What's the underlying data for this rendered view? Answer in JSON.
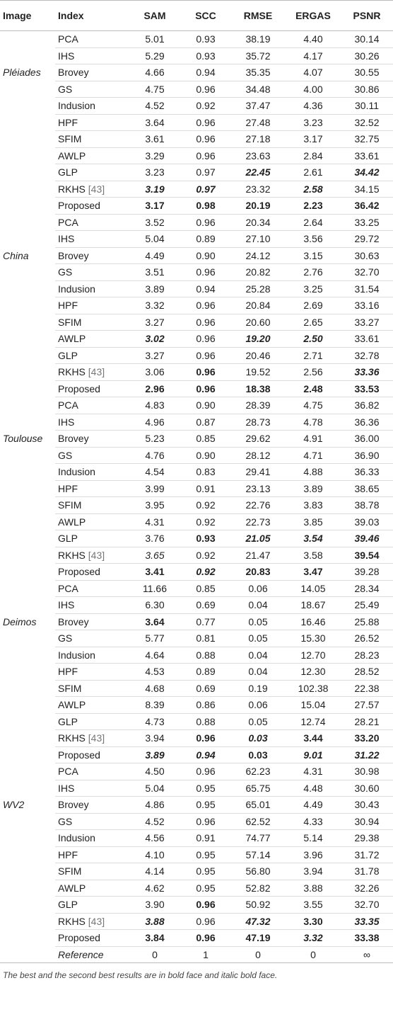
{
  "header": [
    "Image",
    "Index",
    "SAM",
    "SCC",
    "RMSE",
    "ERGAS",
    "PSNR"
  ],
  "groups": [
    {
      "image": "Pléiades",
      "rows": [
        {
          "index": "PCA",
          "values": [
            "5.01",
            "0.93",
            "38.19",
            "4.40",
            "30.14"
          ]
        },
        {
          "index": "IHS",
          "values": [
            "5.29",
            "0.93",
            "35.72",
            "4.17",
            "30.26"
          ]
        },
        {
          "index": "Brovey",
          "values": [
            "4.66",
            "0.94",
            "35.35",
            "4.07",
            "30.55"
          ]
        },
        {
          "index": "GS",
          "values": [
            "4.75",
            "0.96",
            "34.48",
            "4.00",
            "30.86"
          ]
        },
        {
          "index": "Indusion",
          "values": [
            "4.52",
            "0.92",
            "37.47",
            "4.36",
            "30.11"
          ]
        },
        {
          "index": "HPF",
          "values": [
            "3.64",
            "0.96",
            "27.48",
            "3.23",
            "32.52"
          ]
        },
        {
          "index": "SFIM",
          "values": [
            "3.61",
            "0.96",
            "27.18",
            "3.17",
            "32.75"
          ]
        },
        {
          "index": "AWLP",
          "values": [
            "3.29",
            "0.96",
            "23.63",
            "2.84",
            "33.61"
          ]
        },
        {
          "index": "GLP",
          "values": [
            "3.23",
            "0.97",
            "22.45",
            "2.61",
            "34.42"
          ]
        },
        {
          "index": "RKHS",
          "cite": "[43]",
          "values": [
            "3.19",
            "0.97",
            "23.32",
            "2.58",
            "34.15"
          ]
        },
        {
          "index": "Proposed",
          "values": [
            "3.17",
            "0.98",
            "20.19",
            "2.23",
            "36.42"
          ]
        }
      ]
    },
    {
      "image": "China",
      "rows": [
        {
          "index": "PCA",
          "values": [
            "3.52",
            "0.96",
            "20.34",
            "2.64",
            "33.25"
          ]
        },
        {
          "index": "IHS",
          "values": [
            "5.04",
            "0.89",
            "27.10",
            "3.56",
            "29.72"
          ]
        },
        {
          "index": "Brovey",
          "values": [
            "4.49",
            "0.90",
            "24.12",
            "3.15",
            "30.63"
          ]
        },
        {
          "index": "GS",
          "values": [
            "3.51",
            "0.96",
            "20.82",
            "2.76",
            "32.70"
          ]
        },
        {
          "index": "Indusion",
          "values": [
            "3.89",
            "0.94",
            "25.28",
            "3.25",
            "31.54"
          ]
        },
        {
          "index": "HPF",
          "values": [
            "3.32",
            "0.96",
            "20.84",
            "2.69",
            "33.16"
          ]
        },
        {
          "index": "SFIM",
          "values": [
            "3.27",
            "0.96",
            "20.60",
            "2.65",
            "33.27"
          ]
        },
        {
          "index": "AWLP",
          "values": [
            "3.02",
            "0.96",
            "19.20",
            "2.50",
            "33.61"
          ]
        },
        {
          "index": "GLP",
          "values": [
            "3.27",
            "0.96",
            "20.46",
            "2.71",
            "32.78"
          ]
        },
        {
          "index": "RKHS",
          "cite": "[43]",
          "values": [
            "3.06",
            "0.96",
            "19.52",
            "2.56",
            "33.36"
          ]
        },
        {
          "index": "Proposed",
          "values": [
            "2.96",
            "0.96",
            "18.38",
            "2.48",
            "33.53"
          ]
        }
      ]
    },
    {
      "image": "Toulouse",
      "rows": [
        {
          "index": "PCA",
          "values": [
            "4.83",
            "0.90",
            "28.39",
            "4.75",
            "36.82"
          ]
        },
        {
          "index": "IHS",
          "values": [
            "4.96",
            "0.87",
            "28.73",
            "4.78",
            "36.36"
          ]
        },
        {
          "index": "Brovey",
          "values": [
            "5.23",
            "0.85",
            "29.62",
            "4.91",
            "36.00"
          ]
        },
        {
          "index": "GS",
          "values": [
            "4.76",
            "0.90",
            "28.12",
            "4.71",
            "36.90"
          ]
        },
        {
          "index": "Indusion",
          "values": [
            "4.54",
            "0.83",
            "29.41",
            "4.88",
            "36.33"
          ]
        },
        {
          "index": "HPF",
          "values": [
            "3.99",
            "0.91",
            "23.13",
            "3.89",
            "38.65"
          ]
        },
        {
          "index": "SFIM",
          "values": [
            "3.95",
            "0.92",
            "22.76",
            "3.83",
            "38.78"
          ]
        },
        {
          "index": "AWLP",
          "values": [
            "4.31",
            "0.92",
            "22.73",
            "3.85",
            "39.03"
          ]
        },
        {
          "index": "GLP",
          "values": [
            "3.76",
            "0.93",
            "21.05",
            "3.54",
            "39.46"
          ]
        },
        {
          "index": "RKHS",
          "cite": "[43]",
          "values": [
            "3.65",
            "0.92",
            "21.47",
            "3.58",
            "39.54"
          ]
        },
        {
          "index": "Proposed",
          "values": [
            "3.41",
            "0.92",
            "20.83",
            "3.47",
            "39.28"
          ]
        }
      ]
    },
    {
      "image": "Deimos",
      "rows": [
        {
          "index": "PCA",
          "values": [
            "11.66",
            "0.85",
            "0.06",
            "14.05",
            "28.34"
          ]
        },
        {
          "index": "IHS",
          "values": [
            "6.30",
            "0.69",
            "0.04",
            "18.67",
            "25.49"
          ]
        },
        {
          "index": "Brovey",
          "values": [
            "3.64",
            "0.77",
            "0.05",
            "16.46",
            "25.88"
          ]
        },
        {
          "index": "GS",
          "values": [
            "5.77",
            "0.81",
            "0.05",
            "15.30",
            "26.52"
          ]
        },
        {
          "index": "Indusion",
          "values": [
            "4.64",
            "0.88",
            "0.04",
            "12.70",
            "28.23"
          ]
        },
        {
          "index": "HPF",
          "values": [
            "4.53",
            "0.89",
            "0.04",
            "12.30",
            "28.52"
          ]
        },
        {
          "index": "SFIM",
          "values": [
            "4.68",
            "0.69",
            "0.19",
            "102.38",
            "22.38"
          ]
        },
        {
          "index": "AWLP",
          "values": [
            "8.39",
            "0.86",
            "0.06",
            "15.04",
            "27.57"
          ]
        },
        {
          "index": "GLP",
          "values": [
            "4.73",
            "0.88",
            "0.05",
            "12.74",
            "28.21"
          ]
        },
        {
          "index": "RKHS",
          "cite": "[43]",
          "values": [
            "3.94",
            "0.96",
            "0.03",
            "3.44",
            "33.20"
          ]
        },
        {
          "index": "Proposed",
          "values": [
            "3.89",
            "0.94",
            "0.03",
            "9.01",
            "31.22"
          ]
        }
      ]
    },
    {
      "image": "WV2",
      "rows": [
        {
          "index": "PCA",
          "values": [
            "4.50",
            "0.96",
            "62.23",
            "4.31",
            "30.98"
          ]
        },
        {
          "index": "IHS",
          "values": [
            "5.04",
            "0.95",
            "65.75",
            "4.48",
            "30.60"
          ]
        },
        {
          "index": "Brovey",
          "values": [
            "4.86",
            "0.95",
            "65.01",
            "4.49",
            "30.43"
          ]
        },
        {
          "index": "GS",
          "values": [
            "4.52",
            "0.96",
            "62.52",
            "4.33",
            "30.94"
          ]
        },
        {
          "index": "Indusion",
          "values": [
            "4.56",
            "0.91",
            "74.77",
            "5.14",
            "29.38"
          ]
        },
        {
          "index": "HPF",
          "values": [
            "4.10",
            "0.95",
            "57.14",
            "3.96",
            "31.72"
          ]
        },
        {
          "index": "SFIM",
          "values": [
            "4.14",
            "0.95",
            "56.80",
            "3.94",
            "31.78"
          ]
        },
        {
          "index": "AWLP",
          "values": [
            "4.62",
            "0.95",
            "52.82",
            "3.88",
            "32.26"
          ]
        },
        {
          "index": "GLP",
          "values": [
            "3.90",
            "0.96",
            "50.92",
            "3.55",
            "32.70"
          ]
        },
        {
          "index": "RKHS",
          "cite": "[43]",
          "values": [
            "3.88",
            "0.96",
            "47.32",
            "3.30",
            "33.35"
          ]
        },
        {
          "index": "Proposed",
          "values": [
            "3.84",
            "0.96",
            "47.19",
            "3.32",
            "33.38"
          ]
        }
      ]
    }
  ],
  "reference": {
    "index": "Reference",
    "values": [
      "0",
      "1",
      "0",
      "0",
      "∞"
    ]
  },
  "footnote": "The best and the second best results are in bold face and italic bold face."
}
